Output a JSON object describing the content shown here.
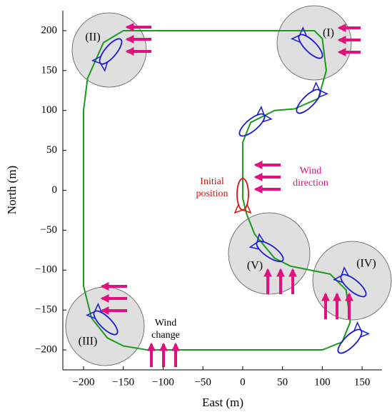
{
  "chart_data": {
    "type": "line",
    "x": [
      0,
      0,
      10,
      40,
      65,
      95,
      105,
      100,
      90,
      60,
      -150,
      -175,
      -195,
      -200,
      -200,
      -190,
      -170,
      -150,
      -120,
      100,
      125,
      135,
      130,
      110,
      60,
      40,
      15,
      5,
      0
    ],
    "y": [
      -10,
      60,
      85,
      100,
      102,
      115,
      150,
      190,
      200,
      200,
      200,
      185,
      140,
      100,
      -120,
      -160,
      -185,
      -195,
      -200,
      -200,
      -190,
      -165,
      -125,
      -105,
      -95,
      -85,
      -55,
      -30,
      -10
    ],
    "color": "#1a9a1a",
    "xlim": [
      -226,
      175
    ],
    "ylim": [
      -225,
      225
    ],
    "xticks": [
      {
        "value": -200,
        "label": "−200"
      },
      {
        "value": -150,
        "label": "−150"
      },
      {
        "value": -100,
        "label": "−100"
      },
      {
        "value": -50,
        "label": "−50"
      },
      0,
      50,
      100,
      150
    ],
    "yticks": [
      {
        "value": -200,
        "label": "−200"
      },
      {
        "value": -150,
        "label": "−150"
      },
      {
        "value": -100,
        "label": "−100"
      },
      {
        "value": -50,
        "label": "−50"
      },
      0,
      50,
      100,
      150,
      200
    ],
    "xlabel": "East (m)",
    "ylabel": "North (m)",
    "grid": false,
    "regions": [
      "(I)",
      "(II)",
      "(III)",
      "(IV)",
      "(V)"
    ],
    "annotations": {
      "initial": [
        "Initial",
        "position"
      ],
      "wind_direction": [
        "Wind",
        "direction"
      ],
      "wind_change": [
        "Wind",
        "change"
      ]
    }
  }
}
